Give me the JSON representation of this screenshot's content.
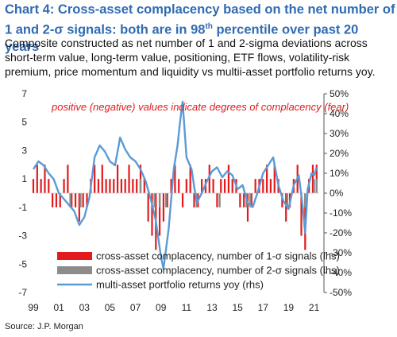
{
  "header": {
    "title_main": "Chart 4: Cross-asset complacency based on the net number of 1 and 2-σ signals: both are in 98",
    "title_sup": "th",
    "title_end": " percentile over past 20 years",
    "subtitle": "Composite constructed as net number of 1 and 2-sigma deviations across short-term value, long-term value, positioning, ETF flows, volatility-risk premium, price momentum and liquidity vs multii-asset portfolio returns yoy."
  },
  "source": "Source: J.P. Morgan",
  "colors": {
    "sig1": "#e31a1c",
    "sig2": "#8c8c8c",
    "returns": "#5b9bd5"
  },
  "chart_data": {
    "type": "bar+line",
    "annotation": "positive (negative) values indicate degrees of complacency (fear)",
    "x_ticks": [
      "99",
      "01",
      "03",
      "05",
      "07",
      "09",
      "11",
      "13",
      "15",
      "17",
      "19",
      "21"
    ],
    "x_range": [
      1999.0,
      2021.4
    ],
    "y_left": {
      "ticks": [
        "7",
        "5",
        "3",
        "1",
        "-1",
        "-3",
        "-5",
        "-7"
      ],
      "range": [
        -7,
        7
      ]
    },
    "y_right": {
      "ticks": [
        "50%",
        "40%",
        "30%",
        "20%",
        "10%",
        "0%",
        "-10%",
        "-20%",
        "-30%",
        "-40%",
        "-50%"
      ],
      "range": [
        -50,
        50
      ]
    },
    "legend": [
      {
        "key": "sig1",
        "label": "cross-asset complacency, number of 1-σ signals (lhs)"
      },
      {
        "key": "sig2",
        "label": "cross-asset complacency, number of 2-σ signals (lhs)"
      },
      {
        "key": "returns",
        "label": "multi-asset portfolio returns yoy (rhs)"
      }
    ],
    "series": [
      {
        "name": "cross-asset complacency, number of 1-σ signals (lhs)",
        "axis": "left",
        "type": "bar",
        "x": [
          1999.0,
          1999.3,
          1999.6,
          1999.9,
          2000.2,
          2000.5,
          2000.8,
          2001.1,
          2001.4,
          2001.7,
          2002.0,
          2002.3,
          2002.6,
          2002.9,
          2003.2,
          2003.5,
          2003.8,
          2004.1,
          2004.4,
          2004.7,
          2005.0,
          2005.3,
          2005.6,
          2005.9,
          2006.2,
          2006.5,
          2006.8,
          2007.1,
          2007.4,
          2007.7,
          2008.0,
          2008.3,
          2008.6,
          2008.9,
          2009.2,
          2009.5,
          2009.8,
          2010.1,
          2010.4,
          2010.7,
          2011.0,
          2011.3,
          2011.6,
          2011.9,
          2012.2,
          2012.5,
          2012.8,
          2013.1,
          2013.4,
          2013.7,
          2014.0,
          2014.3,
          2014.6,
          2014.9,
          2015.2,
          2015.5,
          2015.8,
          2016.1,
          2016.4,
          2016.7,
          2017.0,
          2017.3,
          2017.6,
          2017.9,
          2018.2,
          2018.5,
          2018.8,
          2019.1,
          2019.4,
          2019.7,
          2020.0,
          2020.3,
          2020.6,
          2020.9,
          2021.2
        ],
        "values": [
          1,
          2,
          1,
          2,
          1,
          -1,
          -1,
          -1,
          1,
          2,
          -1,
          -1,
          -2,
          -1,
          -1,
          1,
          2,
          1,
          2,
          1,
          1,
          1,
          2,
          1,
          1,
          2,
          1,
          1,
          2,
          1,
          -2,
          -3,
          -4,
          -3,
          -2,
          -1,
          1,
          2,
          1,
          -1,
          1,
          2,
          -1,
          -1,
          1,
          1,
          2,
          1,
          -1,
          1,
          1,
          2,
          1,
          1,
          -1,
          -1,
          -2,
          -1,
          1,
          1,
          1,
          2,
          1,
          2,
          1,
          -1,
          -2,
          -1,
          1,
          2,
          -3,
          -4,
          1,
          2,
          2
        ]
      },
      {
        "name": "cross-asset complacency, number of 2-σ signals (lhs)",
        "axis": "left",
        "type": "bar",
        "x": [
          2001.9,
          2002.7,
          2007.4,
          2008.5,
          2008.9,
          2009.4,
          2011.8,
          2013.6,
          2015.7,
          2016.0,
          2018.9,
          2020.3,
          2021.0,
          2021.2
        ],
        "values": [
          -1,
          -1,
          1,
          -1,
          -1,
          -1,
          -1,
          -1,
          -1,
          -1,
          -1,
          -1,
          1,
          1
        ]
      },
      {
        "name": "multi-asset portfolio returns yoy (rhs)",
        "axis": "right",
        "type": "line",
        "x": [
          1999.0,
          1999.4,
          1999.8,
          2000.2,
          2000.6,
          2001.0,
          2001.4,
          2001.8,
          2002.2,
          2002.6,
          2003.0,
          2003.4,
          2003.8,
          2004.2,
          2004.6,
          2005.0,
          2005.4,
          2005.8,
          2006.2,
          2006.6,
          2007.0,
          2007.4,
          2007.8,
          2008.2,
          2008.6,
          2009.0,
          2009.2,
          2009.6,
          2010.0,
          2010.3,
          2010.5,
          2010.7,
          2011.0,
          2011.4,
          2011.8,
          2012.2,
          2012.6,
          2013.0,
          2013.4,
          2013.8,
          2014.2,
          2014.6,
          2015.0,
          2015.4,
          2015.8,
          2016.2,
          2016.6,
          2017.0,
          2017.4,
          2017.8,
          2018.2,
          2018.6,
          2019.0,
          2019.4,
          2019.8,
          2020.1,
          2020.3,
          2020.5,
          2020.8,
          2021.0,
          2021.2
        ],
        "values": [
          12,
          16,
          14,
          10,
          7,
          0,
          -3,
          -6,
          -9,
          -16,
          -12,
          -2,
          18,
          24,
          21,
          16,
          14,
          28,
          22,
          18,
          16,
          12,
          6,
          -3,
          -14,
          -32,
          -38,
          -18,
          12,
          24,
          36,
          46,
          18,
          12,
          -5,
          0,
          6,
          11,
          13,
          8,
          11,
          9,
          2,
          4,
          -5,
          -7,
          1,
          10,
          14,
          18,
          4,
          -4,
          -8,
          4,
          9,
          -6,
          -20,
          2,
          10,
          9,
          13
        ]
      }
    ]
  }
}
